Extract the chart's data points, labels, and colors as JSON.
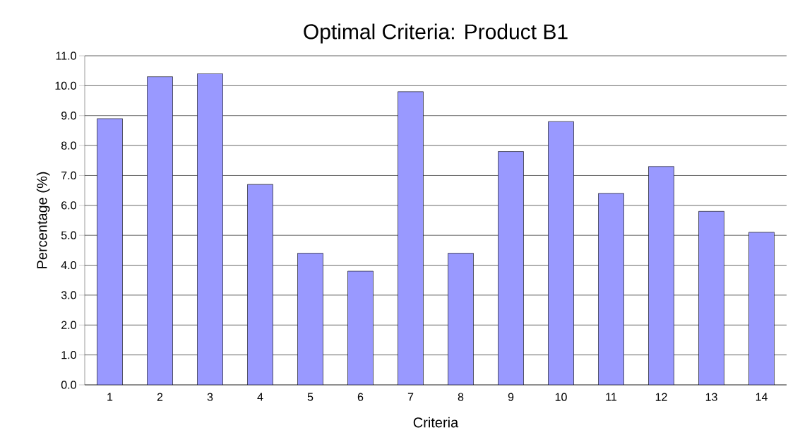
{
  "chart_data": {
    "type": "bar",
    "title": "Optimal Criteria: Product B1",
    "xlabel": "Criteria",
    "ylabel": "Percentage (%)",
    "categories": [
      "1",
      "2",
      "3",
      "4",
      "5",
      "6",
      "7",
      "8",
      "9",
      "10",
      "11",
      "12",
      "13",
      "14"
    ],
    "values": [
      8.9,
      10.3,
      10.4,
      6.7,
      4.4,
      3.8,
      9.8,
      4.4,
      7.8,
      8.8,
      6.4,
      7.3,
      5.8,
      5.1
    ],
    "color": "#9999ff",
    "ylim": [
      0,
      11
    ],
    "yticks": [
      {
        "value": 0,
        "label": "0.0"
      },
      {
        "value": 1,
        "label": "1.0"
      },
      {
        "value": 2,
        "label": "2.0"
      },
      {
        "value": 3,
        "label": "3.0"
      },
      {
        "value": 4,
        "label": "4.0"
      },
      {
        "value": 5,
        "label": "5.0"
      },
      {
        "value": 6,
        "label": "6.0"
      },
      {
        "value": 7,
        "label": "7.0"
      },
      {
        "value": 8,
        "label": "8.0"
      },
      {
        "value": 9,
        "label": "9.0"
      },
      {
        "value": 10,
        "label": "10.0"
      },
      {
        "value": 11,
        "label": "11.0"
      }
    ],
    "grid": "y"
  }
}
